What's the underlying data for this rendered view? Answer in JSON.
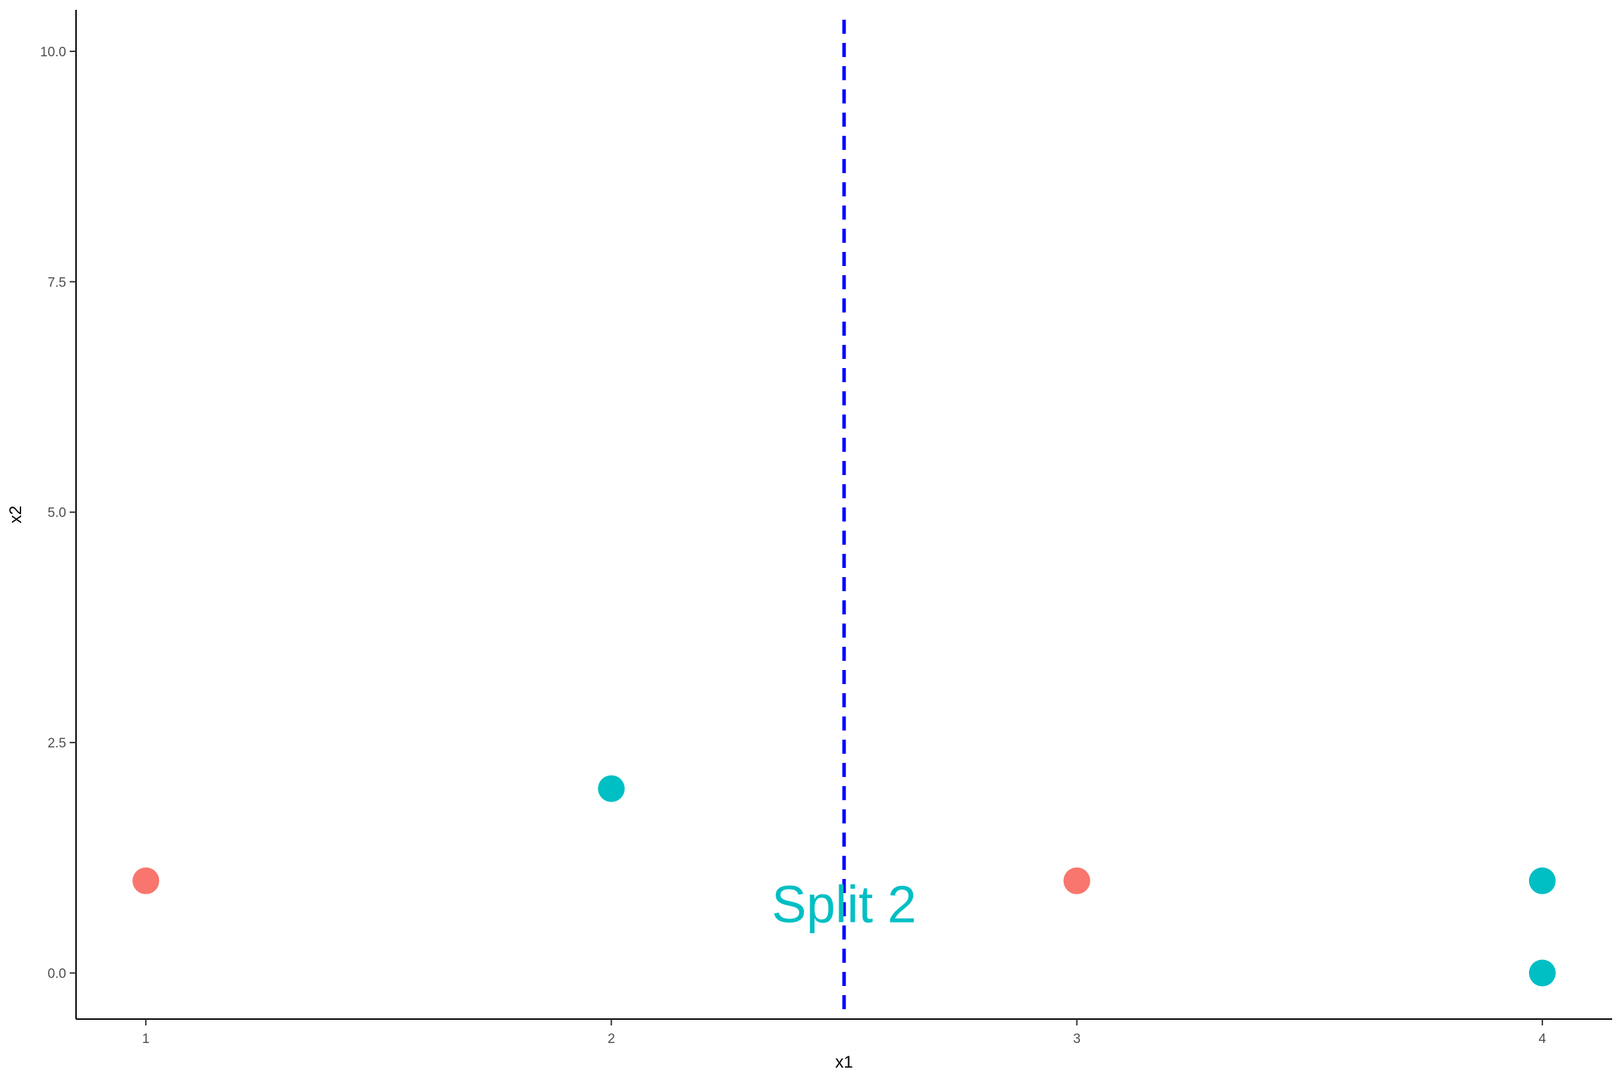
{
  "chart_data": {
    "type": "scatter",
    "title": "",
    "xlabel": "x1",
    "ylabel": "x2",
    "xlim": [
      0.85,
      4.15
    ],
    "ylim": [
      -0.5,
      10.45
    ],
    "x_ticks": [
      1,
      2,
      3,
      4
    ],
    "x_tick_labels": [
      "1",
      "2",
      "3",
      "4"
    ],
    "y_ticks": [
      0,
      2.5,
      5,
      7.5,
      10
    ],
    "y_tick_labels": [
      "0.0",
      "2.5",
      "5.0",
      "7.5",
      "10.0"
    ],
    "grid": false,
    "legend": "none",
    "points": [
      {
        "x": 1,
        "y": 1,
        "group": "red"
      },
      {
        "x": 2,
        "y": 2,
        "group": "teal"
      },
      {
        "x": 3,
        "y": 1,
        "group": "red"
      },
      {
        "x": 4,
        "y": 1,
        "group": "teal"
      },
      {
        "x": 4,
        "y": 0,
        "group": "teal"
      }
    ],
    "group_colors": {
      "red": "#F8766D",
      "teal": "#00BFC4"
    },
    "split": {
      "x": 2.5,
      "color": "#0000FF",
      "style": "dashed"
    },
    "annotation": {
      "text": "Split 2",
      "x": 2.5,
      "y": 0.75,
      "color": "#00BFC4"
    }
  }
}
